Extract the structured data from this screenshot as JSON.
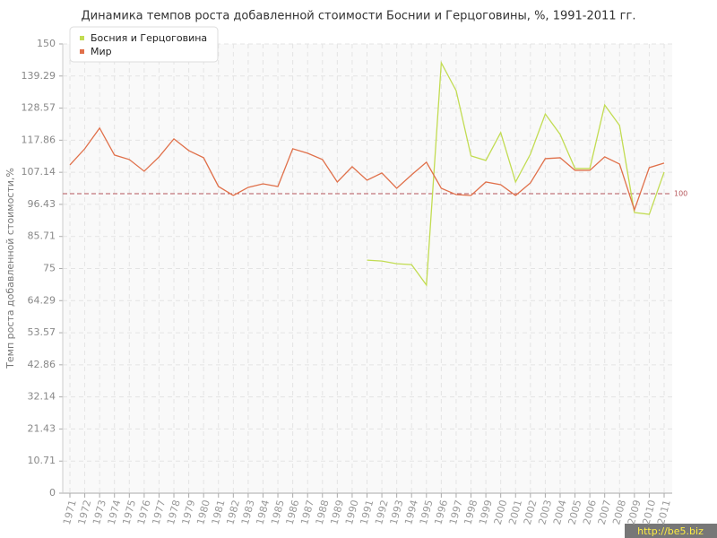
{
  "chart_data": {
    "type": "line",
    "title": "Динамика темпов роста добавленной стоимости Боснии и Герцоговины, %, 1991-2011 гг.",
    "y_label": "Темп роста добавленной стоимости,%",
    "watermark": "http://be5.biz",
    "categories": [
      "1971",
      "1972",
      "1973",
      "1974",
      "1975",
      "1976",
      "1977",
      "1978",
      "1979",
      "1980",
      "1981",
      "1982",
      "1983",
      "1984",
      "1985",
      "1986",
      "1987",
      "1988",
      "1989",
      "1990",
      "1991",
      "1992",
      "1993",
      "1994",
      "1995",
      "1996",
      "1997",
      "1998",
      "1999",
      "2000",
      "2001",
      "2002",
      "2003",
      "2004",
      "2005",
      "2006",
      "2007",
      "2008",
      "2009",
      "2010",
      "2011"
    ],
    "series": [
      {
        "name": "Босния и Герцоговина",
        "color": "#c2dc52",
        "values": [
          null,
          null,
          null,
          null,
          null,
          null,
          null,
          null,
          null,
          null,
          null,
          null,
          null,
          null,
          null,
          null,
          null,
          null,
          null,
          null,
          77.8,
          77.5,
          76.6,
          76.3,
          69.5,
          143.7,
          134.4,
          112.6,
          111.1,
          120.4,
          103.9,
          113.2,
          126.6,
          119.8,
          108.4,
          108.4,
          129.6,
          122.8,
          93.7,
          93.1,
          107.2
        ]
      },
      {
        "name": "Мир",
        "color": "#e0704a",
        "values": [
          109.6,
          115,
          121.9,
          112.9,
          111.4,
          107.5,
          112.3,
          118.3,
          114.4,
          112,
          102.4,
          99.4,
          102.1,
          103.3,
          102.4,
          115,
          113.5,
          111.4,
          103.9,
          109,
          104.5,
          106.9,
          101.8,
          106.3,
          110.5,
          101.8,
          99.7,
          99.4,
          103.9,
          103,
          99.4,
          103.6,
          111.7,
          112,
          107.8,
          107.8,
          112.3,
          109.9,
          94.6,
          108.7,
          110.2
        ]
      }
    ],
    "reference_line": {
      "value": 100,
      "color": "#b5555a"
    },
    "ylim": [
      0,
      150
    ],
    "yticks": [
      0,
      10.71,
      21.43,
      32.14,
      42.86,
      53.57,
      64.29,
      75,
      85.71,
      96.43,
      107.14,
      117.86,
      128.57,
      139.29,
      150
    ],
    "grid": true,
    "legend": "top-left"
  }
}
